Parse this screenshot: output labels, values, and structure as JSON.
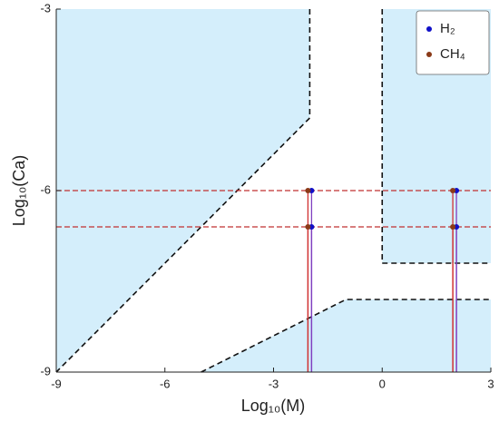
{
  "chart_data": {
    "type": "scatter",
    "xlabel": "Log₁₀(M)",
    "ylabel": "Log₁₀(Ca)",
    "xlim": [
      -9,
      3
    ],
    "ylim": [
      -9,
      -3
    ],
    "xticks": [
      -9,
      -6,
      -3,
      0,
      3
    ],
    "yticks": [
      -9,
      -6,
      -3
    ],
    "region_color": "#d4eefb",
    "regions": [
      {
        "points": [
          [
            -9,
            -3
          ],
          [
            -2,
            -3
          ],
          [
            -2,
            -4.8
          ],
          [
            -9,
            -9
          ]
        ],
        "boundary": [
          [
            -2,
            -3
          ],
          [
            -2,
            -4.8
          ],
          [
            -9,
            -9
          ]
        ]
      },
      {
        "points": [
          [
            0,
            -3
          ],
          [
            3,
            -3
          ],
          [
            3,
            -7.2
          ],
          [
            0,
            -7.2
          ]
        ],
        "boundary": [
          [
            0,
            -3
          ],
          [
            0,
            -7.2
          ],
          [
            3,
            -7.2
          ]
        ]
      },
      {
        "points": [
          [
            -5,
            -9
          ],
          [
            -1,
            -7.8
          ],
          [
            3,
            -7.8
          ],
          [
            3,
            -9
          ]
        ],
        "boundary": [
          [
            -5,
            -9
          ],
          [
            -1,
            -7.8
          ],
          [
            3,
            -7.8
          ]
        ]
      }
    ],
    "hlines": [
      -6,
      -6.6
    ],
    "hline_color": "#c03030",
    "series": [
      {
        "name": "H₂",
        "color": "#1010c8",
        "line_color": "#8040c0",
        "x": [
          -1.95,
          -1.95,
          2.05,
          2.05
        ],
        "values": [
          -6,
          -6.6,
          -6,
          -6.6
        ]
      },
      {
        "name": "CH₄",
        "color": "#8a3a18",
        "line_color": "#d03030",
        "x": [
          -2.05,
          -2.05,
          1.95,
          1.95
        ],
        "values": [
          -6,
          -6.6,
          -6,
          -6.6
        ]
      }
    ],
    "legend": "upper right"
  }
}
